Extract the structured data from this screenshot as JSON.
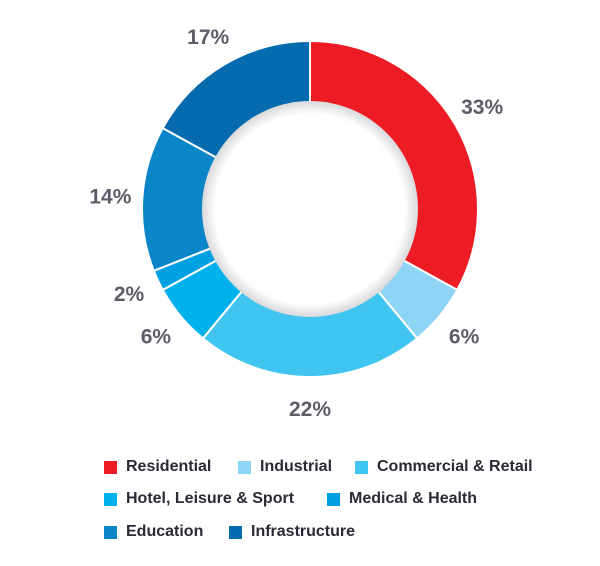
{
  "chart_data": {
    "type": "pie",
    "variant": "donut",
    "categories": [
      "Residential",
      "Industrial",
      "Commercial & Retail",
      "Hotel, Leisure & Sport",
      "Medical & Health",
      "Education",
      "Infrastructure"
    ],
    "values": [
      33,
      6,
      22,
      6,
      2,
      14,
      17
    ],
    "labels": [
      "33%",
      "6%",
      "22%",
      "6%",
      "2%",
      "14%",
      "17%"
    ],
    "colors": [
      "#ed1c24",
      "#8dd4f5",
      "#40c4f0",
      "#00b1ec",
      "#00a1e3",
      "#0a86c8",
      "#056aae"
    ],
    "unit": "%",
    "legend_position": "bottom",
    "start": "top",
    "direction": "clockwise"
  }
}
